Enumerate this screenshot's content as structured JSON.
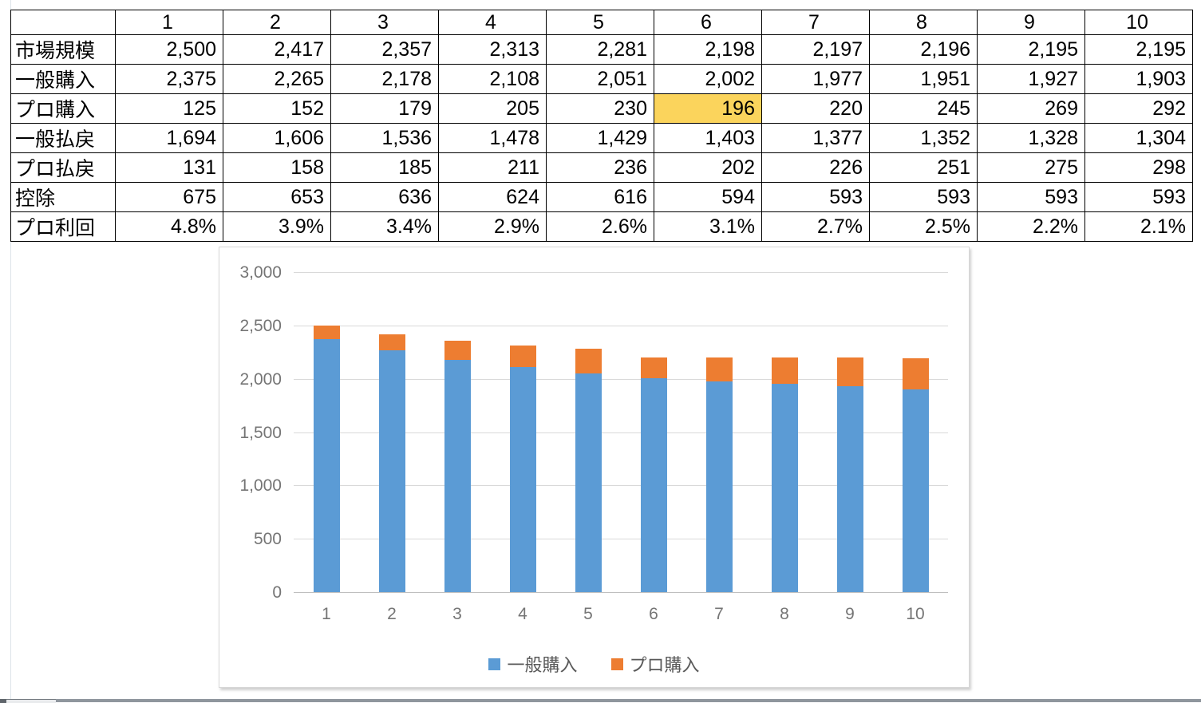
{
  "table": {
    "corner_label": "",
    "columns": [
      "1",
      "2",
      "3",
      "4",
      "5",
      "6",
      "7",
      "8",
      "9",
      "10"
    ],
    "rows": [
      {
        "label": "市場規模",
        "values": [
          "2,500",
          "2,417",
          "2,357",
          "2,313",
          "2,281",
          "2,198",
          "2,197",
          "2,196",
          "2,195",
          "2,195"
        ]
      },
      {
        "label": "一般購入",
        "values": [
          "2,375",
          "2,265",
          "2,178",
          "2,108",
          "2,051",
          "2,002",
          "1,977",
          "1,951",
          "1,927",
          "1,903"
        ]
      },
      {
        "label": "プロ購入",
        "values": [
          "125",
          "152",
          "179",
          "205",
          "230",
          "196",
          "220",
          "245",
          "269",
          "292"
        ]
      },
      {
        "label": "一般払戻",
        "values": [
          "1,694",
          "1,606",
          "1,536",
          "1,478",
          "1,429",
          "1,403",
          "1,377",
          "1,352",
          "1,328",
          "1,304"
        ]
      },
      {
        "label": "プロ払戻",
        "values": [
          "131",
          "158",
          "185",
          "211",
          "236",
          "202",
          "226",
          "251",
          "275",
          "298"
        ]
      },
      {
        "label": "控除",
        "values": [
          "675",
          "653",
          "636",
          "624",
          "616",
          "594",
          "593",
          "593",
          "593",
          "593"
        ]
      },
      {
        "label": "プロ利回",
        "values": [
          "4.8%",
          "3.9%",
          "3.4%",
          "2.9%",
          "2.6%",
          "3.1%",
          "2.7%",
          "2.5%",
          "2.2%",
          "2.1%"
        ]
      }
    ],
    "highlighted_cell": {
      "row_label": "プロ購入",
      "column": "6",
      "row_index": 2,
      "col_index": 5,
      "color": "#FBD45C"
    }
  },
  "chart_data": {
    "type": "bar",
    "stacked": true,
    "categories": [
      "1",
      "2",
      "3",
      "4",
      "5",
      "6",
      "7",
      "8",
      "9",
      "10"
    ],
    "series": [
      {
        "name": "一般購入",
        "color": "#5B9BD5",
        "values": [
          2375,
          2265,
          2178,
          2108,
          2051,
          2002,
          1977,
          1951,
          1927,
          1903
        ]
      },
      {
        "name": "プロ購入",
        "color": "#ED7D31",
        "values": [
          125,
          152,
          179,
          205,
          230,
          196,
          220,
          245,
          269,
          292
        ]
      }
    ],
    "title": "",
    "xlabel": "",
    "ylabel": "",
    "ylim": [
      0,
      3000
    ],
    "ytick_step": 500,
    "ytick_labels": [
      "0",
      "500",
      "1,000",
      "1,500",
      "2,000",
      "2,500",
      "3,000"
    ],
    "grid": true,
    "legend_position": "bottom"
  },
  "colors": {
    "grid_line": "#d9d9d9",
    "zero_axis": "#bfbfbf",
    "axis_text": "#757575",
    "legend_text": "#595959",
    "table_border": "#000000",
    "highlight_yellow": "#FBD45C",
    "series_blue": "#5B9BD5",
    "series_orange": "#ED7D31"
  }
}
